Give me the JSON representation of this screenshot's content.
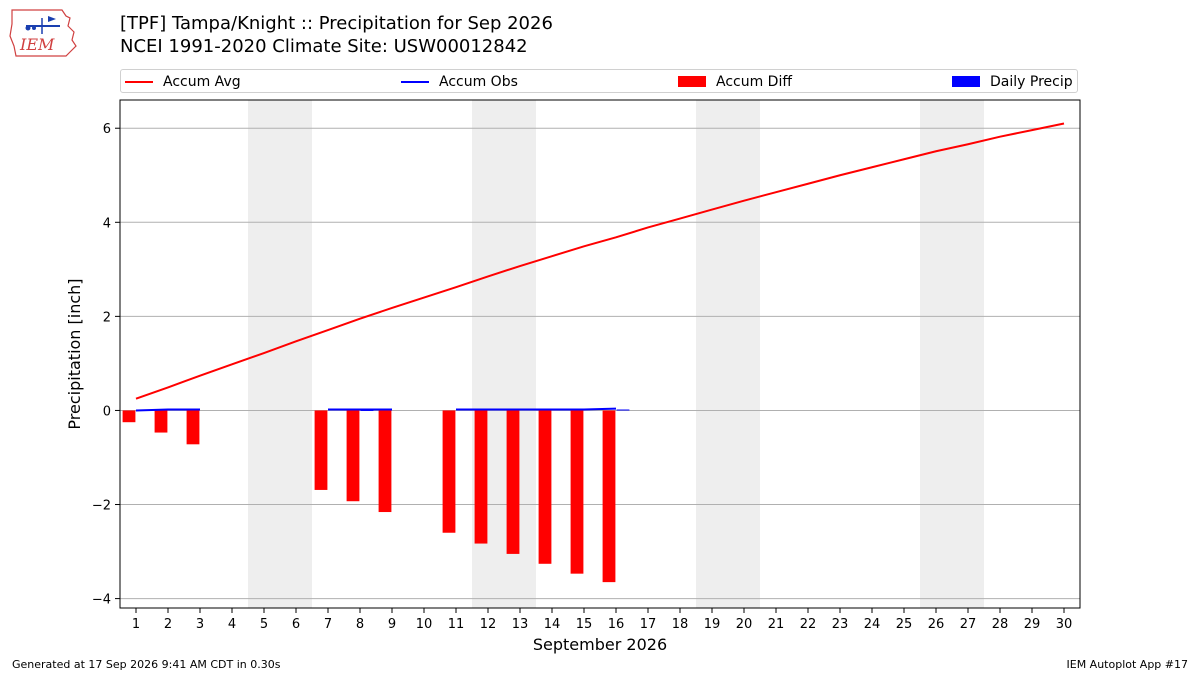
{
  "logo": {
    "text": "IEM",
    "icon": "iem-iowa-logo-icon"
  },
  "header": {
    "title_line1": "[TPF] Tampa/Knight :: Precipitation for Sep 2026",
    "title_line2": "NCEI 1991-2020 Climate Site: USW00012842"
  },
  "legend": {
    "items": [
      {
        "label": "Accum Avg",
        "color": "#ff0000",
        "kind": "line"
      },
      {
        "label": "Accum Obs",
        "color": "#0000ff",
        "kind": "line"
      },
      {
        "label": "Accum Diff",
        "color": "#ff0000",
        "kind": "patch"
      },
      {
        "label": "Daily Precip",
        "color": "#0000ff",
        "kind": "patch"
      }
    ]
  },
  "chart_data": {
    "type": "bar",
    "xlabel": "September 2026",
    "ylabel": "Precipitation [inch]",
    "xlim": [
      0.5,
      30.5
    ],
    "ylim": [
      -4.2,
      6.6
    ],
    "yticks": [
      -4,
      -2,
      0,
      2,
      4,
      6
    ],
    "ytick_labels": [
      "−4",
      "−2",
      "0",
      "2",
      "4",
      "6"
    ],
    "xticks": [
      1,
      2,
      3,
      4,
      5,
      6,
      7,
      8,
      9,
      10,
      11,
      12,
      13,
      14,
      15,
      16,
      17,
      18,
      19,
      20,
      21,
      22,
      23,
      24,
      25,
      26,
      27,
      28,
      29,
      30
    ],
    "grid": "y",
    "weekend_shading": [
      [
        4.5,
        6.5
      ],
      [
        11.5,
        13.5
      ],
      [
        18.5,
        20.5
      ],
      [
        25.5,
        27.5
      ]
    ],
    "weekend_color": "#eeeeee",
    "accum_avg": {
      "name": "Accum Avg",
      "color": "#ff0000",
      "x": [
        1,
        2,
        3,
        4,
        5,
        6,
        7,
        8,
        9,
        10,
        11,
        12,
        13,
        14,
        15,
        16,
        17,
        18,
        19,
        20,
        21,
        22,
        23,
        24,
        25,
        26,
        27,
        28,
        29,
        30
      ],
      "values": [
        0.25,
        0.49,
        0.74,
        0.98,
        1.22,
        1.47,
        1.71,
        1.95,
        2.18,
        2.4,
        2.62,
        2.85,
        3.07,
        3.28,
        3.49,
        3.68,
        3.89,
        4.08,
        4.27,
        4.46,
        4.64,
        4.82,
        5.0,
        5.17,
        5.34,
        5.51,
        5.66,
        5.82,
        5.96,
        6.1
      ]
    },
    "accum_obs": {
      "name": "Accum Obs",
      "color": "#0000ff",
      "segments": [
        {
          "x": [
            1,
            2,
            3
          ],
          "values": [
            0.0,
            0.02,
            0.02
          ]
        },
        {
          "x": [
            7,
            8,
            9
          ],
          "values": [
            0.02,
            0.02,
            0.02
          ]
        },
        {
          "x": [
            11,
            12,
            13,
            14,
            15,
            16
          ],
          "values": [
            0.02,
            0.02,
            0.02,
            0.02,
            0.02,
            0.04
          ]
        }
      ]
    },
    "accum_diff": {
      "name": "Accum Diff",
      "color": "#ff0000",
      "x": [
        1,
        2,
        3,
        7,
        8,
        9,
        11,
        12,
        13,
        14,
        15,
        16
      ],
      "values": [
        -0.25,
        -0.47,
        -0.72,
        -1.69,
        -1.93,
        -2.16,
        -2.6,
        -2.83,
        -3.05,
        -3.26,
        -3.47,
        -3.65
      ]
    },
    "daily_precip": {
      "name": "Daily Precip",
      "color": "#0000ff",
      "x": [
        2,
        8,
        16
      ],
      "values": [
        0.02,
        0.01,
        0.02
      ]
    }
  },
  "footer": {
    "generated": "Generated at 17 Sep 2026 9:41 AM CDT in 0.30s",
    "app": "IEM Autoplot App #17"
  }
}
